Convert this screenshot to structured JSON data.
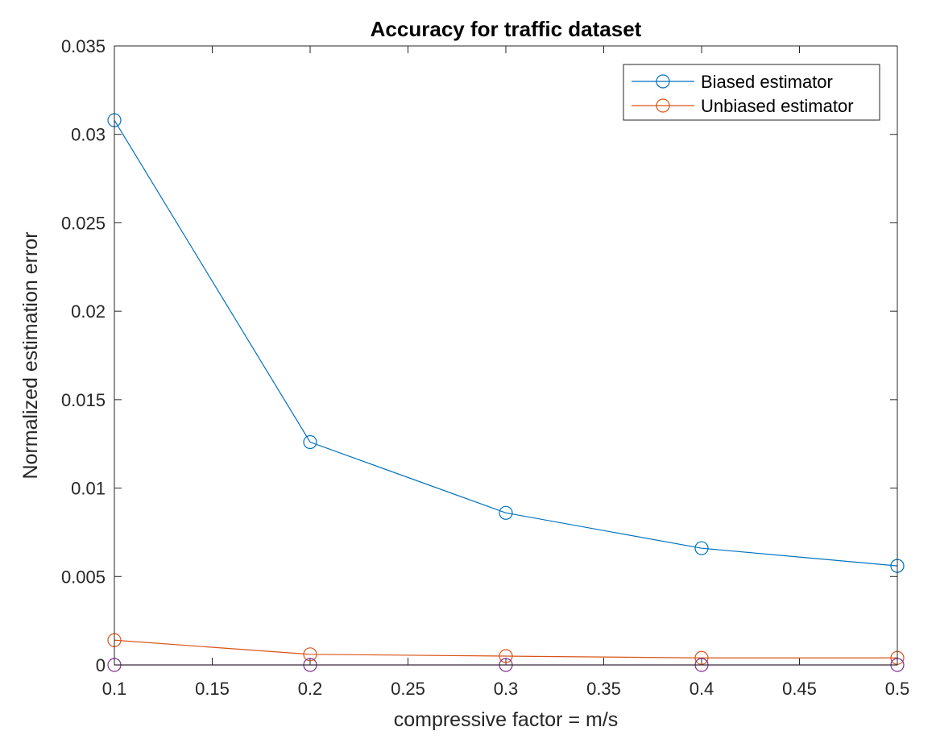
{
  "chart_data": {
    "type": "line",
    "title": "Accuracy for traffic dataset",
    "xlabel": "compressive factor = m/s",
    "ylabel": "Normalized estimation error",
    "xlim": [
      0.1,
      0.5
    ],
    "ylim": [
      0,
      0.035
    ],
    "xticks": [
      0.1,
      0.15,
      0.2,
      0.25,
      0.3,
      0.35,
      0.4,
      0.45,
      0.5
    ],
    "xtick_labels": [
      "0.1",
      "0.15",
      "0.2",
      "0.25",
      "0.3",
      "0.35",
      "0.4",
      "0.45",
      "0.5"
    ],
    "yticks": [
      0,
      0.005,
      0.01,
      0.015,
      0.02,
      0.025,
      0.03,
      0.035
    ],
    "ytick_labels": [
      "0",
      "0.005",
      "0.01",
      "0.015",
      "0.02",
      "0.025",
      "0.03",
      "0.035"
    ],
    "grid": false,
    "legend_position": "top-right",
    "marker": "circle",
    "x": [
      0.1,
      0.2,
      0.3,
      0.4,
      0.5
    ],
    "series": [
      {
        "name": "Biased estimator",
        "color": "#0072BD",
        "show_in_legend": true,
        "values": [
          0.0308,
          0.0126,
          0.0086,
          0.0066,
          0.0056
        ]
      },
      {
        "name": "Unbiased estimator",
        "color": "#D95319",
        "show_in_legend": true,
        "values": [
          0.0014,
          0.0006,
          0.0005,
          0.0004,
          0.0004
        ]
      },
      {
        "color": "#7E2F8E",
        "show_in_legend": false,
        "values": [
          0,
          0,
          0,
          0,
          0
        ]
      }
    ]
  }
}
